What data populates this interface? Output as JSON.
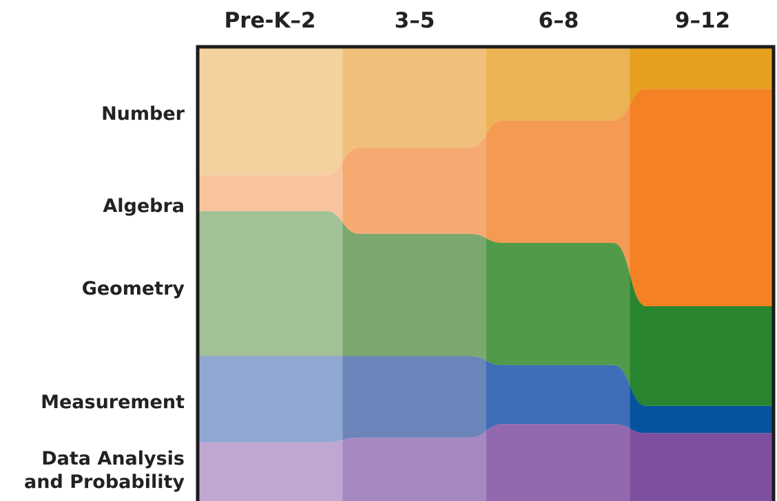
{
  "chart_data": {
    "type": "area",
    "title": "",
    "xlabel": "",
    "ylabel": "",
    "categories": [
      "Pre-K–2",
      "3–5",
      "6–8",
      "9–12"
    ],
    "series": [
      {
        "name": "Number",
        "color": "#f2b04e",
        "shade": [
          "#f3d29f",
          "#f0c07a",
          "#ebb354",
          "#e4a01e"
        ],
        "values": [
          0.28,
          0.22,
          0.16,
          0.09
        ]
      },
      {
        "name": "Algebra",
        "color": "#f5a064",
        "shade": [
          "#f8c49d",
          "#f6aa72",
          "#f49a52",
          "#f48225"
        ],
        "values": [
          0.08,
          0.19,
          0.27,
          0.48
        ]
      },
      {
        "name": "Geometry",
        "color": "#6aa45c",
        "shade": [
          "#a2c196",
          "#7aa86f",
          "#519a49",
          "#2a8531"
        ],
        "values": [
          0.32,
          0.27,
          0.27,
          0.22
        ]
      },
      {
        "name": "Measurement",
        "color": "#5a80be",
        "shade": [
          "#91a7d3",
          "#6b84ba",
          "#3e6eb8",
          "#06539d"
        ],
        "values": [
          0.19,
          0.18,
          0.13,
          0.06
        ]
      },
      {
        "name": "Data Analysis and Probability",
        "color": "#9a7ab8",
        "shade": [
          "#bfa7d1",
          "#a689c1",
          "#9269af",
          "#7e4f9f"
        ],
        "values": [
          0.13,
          0.14,
          0.17,
          0.15
        ]
      }
    ]
  },
  "grade_labels": [
    "Pre-K–2",
    "3–5",
    "6–8",
    "9–12"
  ],
  "strand_labels": {
    "number": "Number",
    "algebra": "Algebra",
    "geometry": "Geometry",
    "measurement": "Measurement",
    "data_line1": "Data Analysis",
    "data_line2": "and Probability"
  }
}
